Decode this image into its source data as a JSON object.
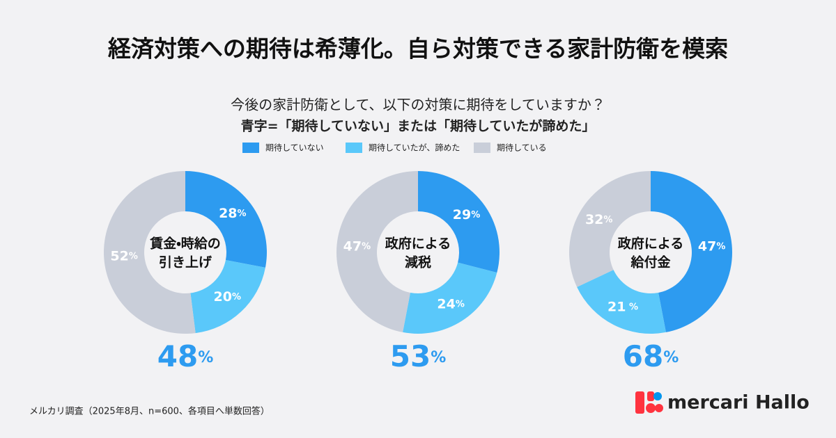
{
  "title": "経済対策への期待は希薄化。自ら対策できる家計防衛を模索",
  "subtitle": [
    "今後の家計防衛として、以下の対策に期待をしていますか？",
    "青字=「期待していない」または「期待していたが諦めた」"
  ],
  "legend": {
    "categories": [
      "期待していない",
      "期待していたが、諦めた",
      "期待している"
    ],
    "colors": [
      "#2d9bf0",
      "#5ac8fa",
      "#c9ced9"
    ]
  },
  "chart_data": [
    {
      "type": "pie",
      "title": [
        "賃金・時給の",
        "引き上げ"
      ],
      "values": [
        28,
        20,
        52
      ],
      "value_labels": [
        "28%",
        "20%",
        "52%"
      ],
      "total": 48,
      "total_label": "48%"
    },
    {
      "type": "pie",
      "title": [
        "政府による",
        "減税"
      ],
      "values": [
        29,
        24,
        47
      ],
      "value_labels": [
        "29%",
        "24%",
        "47%"
      ],
      "total": 53,
      "total_label": "53%"
    },
    {
      "type": "pie",
      "title": [
        "政府による",
        "給付金"
      ],
      "values": [
        47,
        21,
        32
      ],
      "value_labels": [
        "47%",
        "21 %",
        "32%"
      ],
      "total": 68,
      "total_label": "68%"
    }
  ],
  "source": "メルカリ調査（2025年8月、n=600、各項目へ単数回答）",
  "brand": "mercari Hallo"
}
